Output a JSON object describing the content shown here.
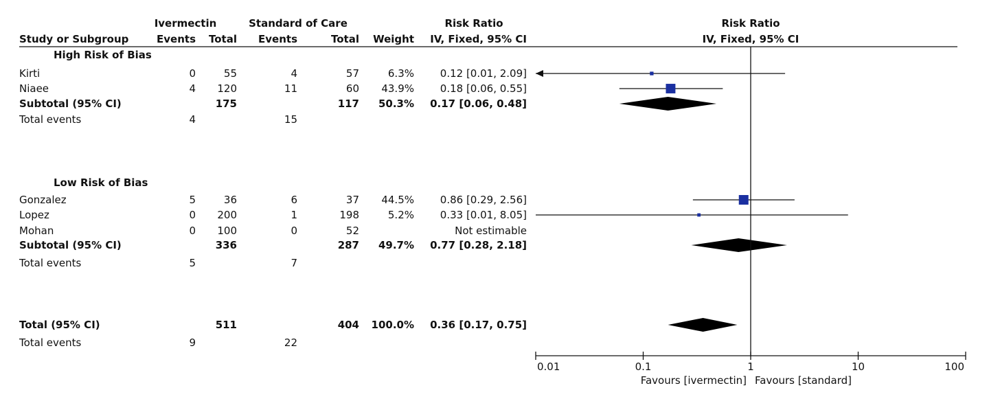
{
  "headers": {
    "group1": "Ivermectin",
    "group2": "Standard of Care",
    "rr_title": "Risk Ratio",
    "rr_method": "IV, Fixed, 95% CI",
    "col_study": "Study or Subgroup",
    "col_events": "Events",
    "col_total": "Total",
    "col_weight": "Weight",
    "plot_title": "Risk Ratio",
    "plot_method": "IV, Fixed, 95% CI"
  },
  "chart_data": {
    "type": "forest",
    "xscale": "log",
    "xlim": [
      0.01,
      100
    ],
    "xticks": [
      "0.01",
      "0.1",
      "1",
      "10",
      "100"
    ],
    "reference_line": 1,
    "xlabel_left": "Favours [ivermectin]",
    "xlabel_right": "Favours [standard]",
    "rows": [
      {
        "kind": "header",
        "label": "High Risk of Bias"
      },
      {
        "kind": "study",
        "label": "Kirti",
        "e1": "0",
        "n1": "55",
        "e2": "4",
        "n2": "57",
        "weight": "6.3%",
        "ci_text": "0.12 [0.01, 2.09]",
        "est": 0.12,
        "lo": 0.01,
        "hi": 2.09,
        "w": 6.3
      },
      {
        "kind": "study",
        "label": "Niaee",
        "e1": "4",
        "n1": "120",
        "e2": "11",
        "n2": "60",
        "weight": "43.9%",
        "ci_text": "0.18 [0.06, 0.55]",
        "est": 0.18,
        "lo": 0.06,
        "hi": 0.55,
        "w": 43.9
      },
      {
        "kind": "subtotal",
        "label": "Subtotal (95% CI)",
        "n1": "175",
        "n2": "117",
        "weight": "50.3%",
        "ci_text": "0.17 [0.06, 0.48]",
        "est": 0.17,
        "lo": 0.06,
        "hi": 0.48
      },
      {
        "kind": "events",
        "label": "Total events",
        "e1": "4",
        "e2": "15"
      },
      {
        "kind": "header",
        "label": "Low Risk of Bias"
      },
      {
        "kind": "study",
        "label": "Gonzalez",
        "e1": "5",
        "n1": "36",
        "e2": "6",
        "n2": "37",
        "weight": "44.5%",
        "ci_text": "0.86 [0.29, 2.56]",
        "est": 0.86,
        "lo": 0.29,
        "hi": 2.56,
        "w": 44.5
      },
      {
        "kind": "study",
        "label": "Lopez",
        "e1": "0",
        "n1": "200",
        "e2": "1",
        "n2": "198",
        "weight": "5.2%",
        "ci_text": "0.33 [0.01, 8.05]",
        "est": 0.33,
        "lo": 0.01,
        "hi": 8.05,
        "w": 5.2
      },
      {
        "kind": "study",
        "label": "Mohan",
        "e1": "0",
        "n1": "100",
        "e2": "0",
        "n2": "52",
        "weight": "",
        "ci_text": "Not estimable"
      },
      {
        "kind": "subtotal",
        "label": "Subtotal (95% CI)",
        "n1": "336",
        "n2": "287",
        "weight": "49.7%",
        "ci_text": "0.77 [0.28, 2.18]",
        "est": 0.77,
        "lo": 0.28,
        "hi": 2.18
      },
      {
        "kind": "events",
        "label": "Total events",
        "e1": "5",
        "e2": "7"
      },
      {
        "kind": "subtotal",
        "label": "Total (95% CI)",
        "n1": "511",
        "n2": "404",
        "weight": "100.0%",
        "ci_text": "0.36 [0.17, 0.75]",
        "est": 0.36,
        "lo": 0.17,
        "hi": 0.75
      },
      {
        "kind": "events",
        "label": "Total events",
        "e1": "9",
        "e2": "22"
      }
    ]
  }
}
